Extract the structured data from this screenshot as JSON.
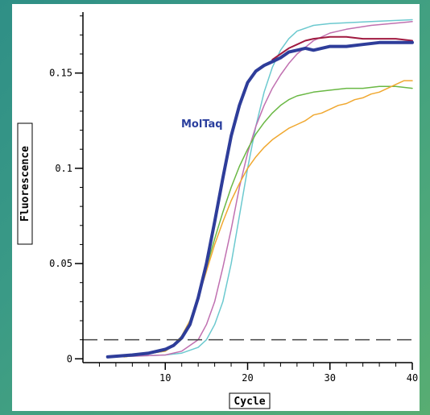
{
  "chart_data": {
    "type": "line",
    "title": "",
    "xlabel": "Cycle",
    "ylabel": "Fluorescence",
    "xlim": [
      0,
      40
    ],
    "ylim": [
      -0.002,
      0.182
    ],
    "x_ticks": [
      10,
      20,
      30,
      40
    ],
    "y_ticks": [
      0,
      0.05,
      0.1,
      0.15
    ],
    "x_tick_labels": [
      "10",
      "20",
      "30",
      "40"
    ],
    "y_tick_labels": [
      "0",
      "0.05",
      "0.1",
      "0.15"
    ],
    "grid": false,
    "threshold": 0.01,
    "annotation": {
      "text": "MolTaq",
      "color": "#2b3f9e"
    },
    "series": [
      {
        "color": "#2e3d9a",
        "width": 4,
        "points": [
          [
            3,
            0.001
          ],
          [
            6,
            0.002
          ],
          [
            8,
            0.003
          ],
          [
            10,
            0.005
          ],
          [
            11,
            0.007
          ],
          [
            12,
            0.011
          ],
          [
            13,
            0.018
          ],
          [
            14,
            0.032
          ],
          [
            15,
            0.05
          ],
          [
            16,
            0.072
          ],
          [
            17,
            0.095
          ],
          [
            18,
            0.117
          ],
          [
            19,
            0.133
          ],
          [
            20,
            0.145
          ],
          [
            21,
            0.151
          ],
          [
            22,
            0.154
          ],
          [
            23,
            0.156
          ],
          [
            24,
            0.158
          ],
          [
            25,
            0.161
          ],
          [
            26,
            0.162
          ],
          [
            27,
            0.163
          ],
          [
            28,
            0.162
          ],
          [
            29,
            0.163
          ],
          [
            30,
            0.164
          ],
          [
            32,
            0.164
          ],
          [
            34,
            0.165
          ],
          [
            36,
            0.166
          ],
          [
            38,
            0.166
          ],
          [
            40,
            0.166
          ]
        ]
      },
      {
        "color": "#a01a40",
        "width": 2,
        "points": [
          [
            23,
            0.157
          ],
          [
            24,
            0.16
          ],
          [
            25,
            0.163
          ],
          [
            26,
            0.165
          ],
          [
            27,
            0.167
          ],
          [
            28,
            0.168
          ],
          [
            30,
            0.169
          ],
          [
            32,
            0.169
          ],
          [
            34,
            0.168
          ],
          [
            36,
            0.168
          ],
          [
            38,
            0.168
          ],
          [
            40,
            0.167
          ]
        ]
      },
      {
        "color": "#6cc9cf",
        "width": 1.5,
        "points": [
          [
            4,
            0.001
          ],
          [
            10,
            0.002
          ],
          [
            12,
            0.003
          ],
          [
            14,
            0.006
          ],
          [
            15,
            0.01
          ],
          [
            16,
            0.018
          ],
          [
            17,
            0.03
          ],
          [
            18,
            0.05
          ],
          [
            19,
            0.075
          ],
          [
            20,
            0.1
          ],
          [
            21,
            0.122
          ],
          [
            22,
            0.14
          ],
          [
            23,
            0.153
          ],
          [
            24,
            0.162
          ],
          [
            25,
            0.168
          ],
          [
            26,
            0.172
          ],
          [
            28,
            0.175
          ],
          [
            30,
            0.176
          ],
          [
            35,
            0.177
          ],
          [
            40,
            0.178
          ]
        ]
      },
      {
        "color": "#c070b0",
        "width": 1.5,
        "points": [
          [
            4,
            0.001
          ],
          [
            10,
            0.002
          ],
          [
            12,
            0.004
          ],
          [
            14,
            0.01
          ],
          [
            15,
            0.018
          ],
          [
            16,
            0.03
          ],
          [
            17,
            0.048
          ],
          [
            18,
            0.068
          ],
          [
            19,
            0.09
          ],
          [
            20,
            0.108
          ],
          [
            21,
            0.122
          ],
          [
            22,
            0.133
          ],
          [
            23,
            0.142
          ],
          [
            24,
            0.149
          ],
          [
            25,
            0.155
          ],
          [
            26,
            0.16
          ],
          [
            28,
            0.167
          ],
          [
            30,
            0.171
          ],
          [
            32,
            0.173
          ],
          [
            35,
            0.175
          ],
          [
            40,
            0.177
          ]
        ]
      },
      {
        "color": "#6ab844",
        "width": 1.5,
        "points": [
          [
            5,
            0.001
          ],
          [
            10,
            0.004
          ],
          [
            11,
            0.007
          ],
          [
            12,
            0.012
          ],
          [
            13,
            0.02
          ],
          [
            14,
            0.033
          ],
          [
            15,
            0.048
          ],
          [
            16,
            0.063
          ],
          [
            17,
            0.077
          ],
          [
            18,
            0.09
          ],
          [
            19,
            0.101
          ],
          [
            20,
            0.11
          ],
          [
            21,
            0.118
          ],
          [
            22,
            0.124
          ],
          [
            23,
            0.129
          ],
          [
            24,
            0.133
          ],
          [
            25,
            0.136
          ],
          [
            26,
            0.138
          ],
          [
            28,
            0.14
          ],
          [
            30,
            0.141
          ],
          [
            32,
            0.142
          ],
          [
            34,
            0.142
          ],
          [
            36,
            0.143
          ],
          [
            38,
            0.143
          ],
          [
            40,
            0.142
          ]
        ]
      },
      {
        "color": "#f0a830",
        "width": 1.5,
        "points": [
          [
            5,
            0.001
          ],
          [
            10,
            0.004
          ],
          [
            11,
            0.007
          ],
          [
            12,
            0.012
          ],
          [
            13,
            0.02
          ],
          [
            14,
            0.032
          ],
          [
            15,
            0.046
          ],
          [
            16,
            0.06
          ],
          [
            17,
            0.072
          ],
          [
            18,
            0.083
          ],
          [
            19,
            0.092
          ],
          [
            20,
            0.1
          ],
          [
            21,
            0.106
          ],
          [
            22,
            0.111
          ],
          [
            23,
            0.115
          ],
          [
            24,
            0.118
          ],
          [
            25,
            0.121
          ],
          [
            26,
            0.123
          ],
          [
            27,
            0.125
          ],
          [
            28,
            0.128
          ],
          [
            29,
            0.129
          ],
          [
            30,
            0.131
          ],
          [
            31,
            0.133
          ],
          [
            32,
            0.134
          ],
          [
            33,
            0.136
          ],
          [
            34,
            0.137
          ],
          [
            35,
            0.139
          ],
          [
            36,
            0.14
          ],
          [
            37,
            0.142
          ],
          [
            38,
            0.144
          ],
          [
            39,
            0.146
          ],
          [
            40,
            0.146
          ]
        ]
      }
    ]
  }
}
